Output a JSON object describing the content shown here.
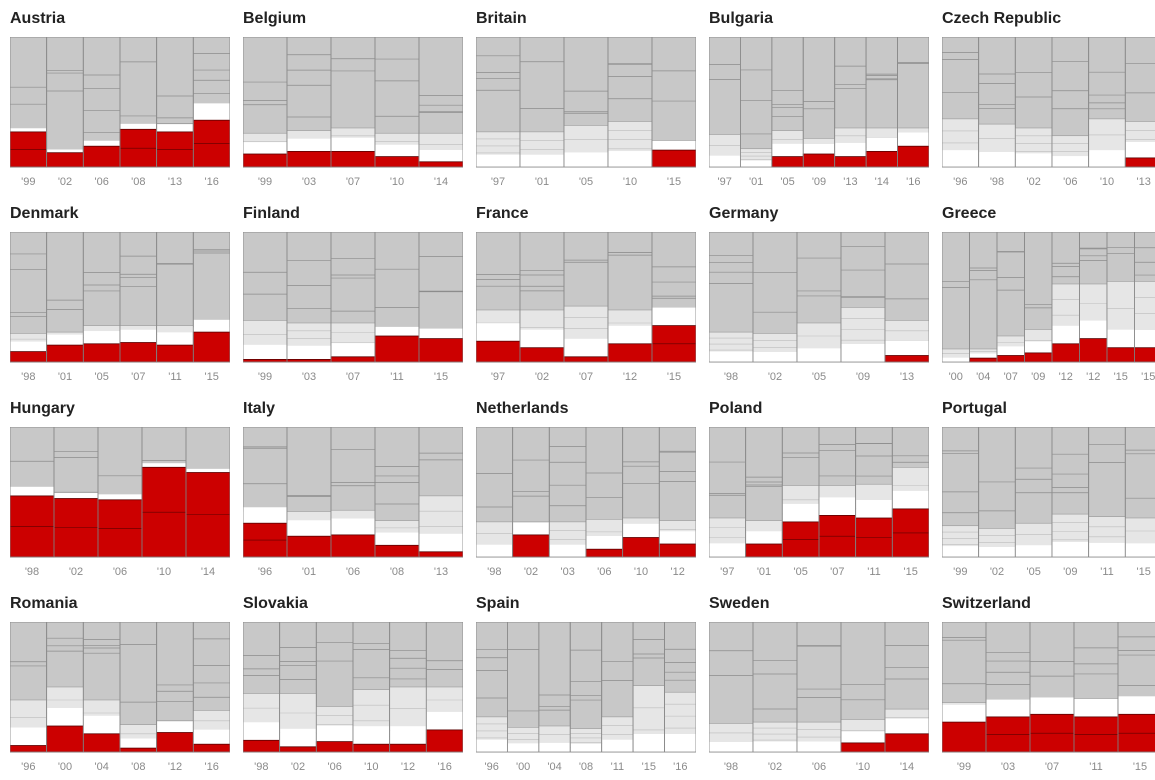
{
  "colors": {
    "far_right": "#cc0000",
    "middle_dark": "#c8c8c8",
    "middle_light": "#e6e6e6",
    "white": "#ffffff",
    "bar_border": "#8c8c8c"
  },
  "chart_data": [
    {
      "type": "bar",
      "title": "Austria",
      "categories": [
        "'99",
        "'02",
        "'06",
        "'08",
        "'13",
        "'16"
      ],
      "far_right_share": [
        27,
        11,
        16,
        29,
        27,
        36
      ],
      "middle_light_share": [
        8,
        7,
        12,
        12,
        17,
        37
      ]
    },
    {
      "type": "bar",
      "title": "Belgium",
      "categories": [
        "'99",
        "'03",
        "'07",
        "'10",
        "'14"
      ],
      "far_right_share": [
        10,
        12,
        12,
        8,
        4
      ],
      "middle_light_share": [
        26,
        28,
        30,
        26,
        26
      ]
    },
    {
      "type": "bar",
      "title": "Britain",
      "categories": [
        "'97",
        "'01",
        "'05",
        "'10",
        "'15"
      ],
      "far_right_share": [
        0,
        0,
        0,
        0,
        13
      ],
      "middle_light_share": [
        27,
        27,
        32,
        35,
        20
      ]
    },
    {
      "type": "bar",
      "title": "Bulgaria",
      "categories": [
        "'97",
        "'01",
        "'05",
        "'09",
        "'13",
        "'14",
        "'16"
      ],
      "far_right_share": [
        0,
        0,
        8,
        10,
        8,
        12,
        16
      ],
      "middle_light_share": [
        25,
        14,
        28,
        22,
        30,
        30,
        30
      ]
    },
    {
      "type": "bar",
      "title": "Czech Republic",
      "categories": [
        "'96",
        "'98",
        "'02",
        "'06",
        "'10",
        "'13"
      ],
      "far_right_share": [
        0,
        0,
        0,
        0,
        0,
        7
      ],
      "middle_light_share": [
        37,
        33,
        30,
        24,
        37,
        35
      ]
    },
    {
      "type": "bar",
      "title": "Denmark",
      "categories": [
        "'98",
        "'01",
        "'05",
        "'07",
        "'11",
        "'15"
      ],
      "far_right_share": [
        8,
        13,
        14,
        15,
        13,
        23
      ],
      "middle_light_share": [
        22,
        23,
        28,
        28,
        28,
        27
      ]
    },
    {
      "type": "bar",
      "title": "Finland",
      "categories": [
        "'99",
        "'03",
        "'07",
        "'11",
        "'15"
      ],
      "far_right_share": [
        2,
        2,
        4,
        20,
        18
      ],
      "middle_light_share": [
        32,
        30,
        30,
        20,
        22
      ]
    },
    {
      "type": "bar",
      "title": "France",
      "categories": [
        "'97",
        "'02",
        "'07",
        "'12",
        "'15"
      ],
      "far_right_share": [
        16,
        11,
        4,
        14,
        28
      ],
      "middle_light_share": [
        40,
        40,
        43,
        40,
        40
      ]
    },
    {
      "type": "bar",
      "title": "Germany",
      "categories": [
        "'98",
        "'02",
        "'05",
        "'09",
        "'13"
      ],
      "far_right_share": [
        0,
        0,
        0,
        0,
        5
      ],
      "middle_light_share": [
        23,
        22,
        30,
        42,
        32
      ]
    },
    {
      "type": "bar",
      "title": "Greece",
      "categories": [
        "'00",
        "'04",
        "'07",
        "'09",
        "'12",
        "'12",
        "'15",
        "'15"
      ],
      "far_right_share": [
        0,
        3,
        5,
        7,
        14,
        18,
        11,
        11
      ],
      "middle_light_share": [
        10,
        10,
        20,
        25,
        60,
        60,
        62,
        62
      ]
    },
    {
      "type": "bar",
      "title": "Hungary",
      "categories": [
        "'98",
        "'02",
        "'06",
        "'10",
        "'14"
      ],
      "far_right_share": [
        47,
        45,
        44,
        69,
        65
      ],
      "middle_light_share": [
        20,
        12,
        12,
        9,
        8
      ]
    },
    {
      "type": "bar",
      "title": "Italy",
      "categories": [
        "'96",
        "'01",
        "'06",
        "'08",
        "'13"
      ],
      "far_right_share": [
        26,
        16,
        17,
        9,
        4
      ],
      "middle_light_share": [
        35,
        35,
        36,
        28,
        47
      ]
    },
    {
      "type": "bar",
      "title": "Netherlands",
      "categories": [
        "'98",
        "'02",
        "'03",
        "'06",
        "'10",
        "'12"
      ],
      "far_right_share": [
        0,
        17,
        0,
        6,
        15,
        10
      ],
      "middle_light_share": [
        27,
        27,
        27,
        29,
        30,
        28
      ]
    },
    {
      "type": "bar",
      "title": "Poland",
      "categories": [
        "'97",
        "'01",
        "'05",
        "'07",
        "'11",
        "'15"
      ],
      "far_right_share": [
        0,
        10,
        27,
        32,
        30,
        37
      ],
      "middle_light_share": [
        30,
        28,
        55,
        55,
        56,
        69
      ]
    },
    {
      "type": "bar",
      "title": "Portugal",
      "categories": [
        "'99",
        "'02",
        "'05",
        "'09",
        "'11",
        "'15"
      ],
      "far_right_share": [
        0,
        0,
        0,
        0,
        0,
        0
      ],
      "middle_light_share": [
        24,
        22,
        26,
        33,
        31,
        30
      ]
    },
    {
      "type": "bar",
      "title": "Romania",
      "categories": [
        "'96",
        "'00",
        "'04",
        "'08",
        "'12",
        "'16"
      ],
      "far_right_share": [
        5,
        20,
        14,
        3,
        15,
        6
      ],
      "middle_light_share": [
        40,
        50,
        40,
        21,
        24,
        32
      ]
    },
    {
      "type": "bar",
      "title": "Slovakia",
      "categories": [
        "'98",
        "'02",
        "'06",
        "'10",
        "'12",
        "'16"
      ],
      "far_right_share": [
        9,
        4,
        8,
        6,
        6,
        17
      ],
      "middle_light_share": [
        45,
        45,
        35,
        48,
        50,
        50
      ]
    },
    {
      "type": "bar",
      "title": "Spain",
      "categories": [
        "'96",
        "'00",
        "'04",
        "'08",
        "'11",
        "'15",
        "'16"
      ],
      "far_right_share": [
        0,
        0,
        0,
        0,
        0,
        0,
        0
      ],
      "middle_light_share": [
        27,
        19,
        20,
        18,
        27,
        51,
        46
      ]
    },
    {
      "type": "bar",
      "title": "Sweden",
      "categories": [
        "'98",
        "'02",
        "'06",
        "'10",
        "'14"
      ],
      "far_right_share": [
        0,
        0,
        0,
        7,
        14
      ],
      "middle_light_share": [
        22,
        23,
        23,
        25,
        33
      ]
    },
    {
      "type": "bar",
      "title": "Switzerland",
      "categories": [
        "'99",
        "'03",
        "'07",
        "'11",
        "'15"
      ],
      "far_right_share": [
        23,
        27,
        29,
        27,
        29
      ],
      "middle_light_share": [
        38,
        38,
        37,
        41,
        41
      ]
    }
  ]
}
